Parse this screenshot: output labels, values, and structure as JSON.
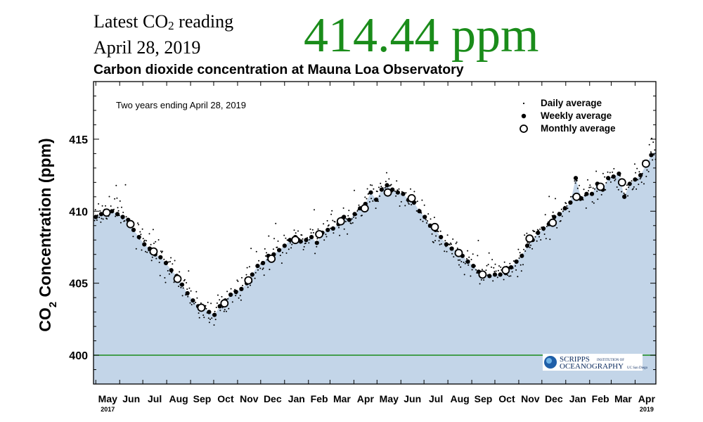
{
  "header": {
    "latest_prefix": "Latest CO",
    "latest_sub": "2",
    "latest_suffix": " reading",
    "date": "April 28, 2019",
    "latest_value": "414.44 ppm"
  },
  "colors": {
    "value_green": "#1a8c1a",
    "fill": "#c3d5e8",
    "baseline": "#1a8c1a",
    "points": "#000000"
  },
  "logo": {
    "line1": "SCRIPPS",
    "line1_small": "INSTITUTION OF",
    "line2": "OCEANOGRAPHY",
    "line2_small": "UC San Diego",
    "icon": "globe-icon"
  },
  "chart_data": {
    "type": "scatter",
    "title": "Carbon dioxide concentration at Mauna Loa Observatory",
    "note": "Two years ending April 28, 2019",
    "ylabel_prefix": "CO",
    "ylabel_sub": "2",
    "ylabel_suffix": " Concentration (ppm)",
    "ylim": [
      398,
      419
    ],
    "yticks": [
      400,
      405,
      410,
      415
    ],
    "xlim": [
      "2017-04-28",
      "2019-04-28"
    ],
    "reference_line": 400,
    "month_labels": [
      "May",
      "Jun",
      "Jul",
      "Aug",
      "Sep",
      "Oct",
      "Nov",
      "Dec",
      "Jan",
      "Feb",
      "Mar",
      "Apr",
      "May",
      "Jun",
      "Jul",
      "Aug",
      "Sep",
      "Oct",
      "Nov",
      "Dec",
      "Jan",
      "Feb",
      "Mar",
      "Apr"
    ],
    "year_labels": [
      {
        "text": "2017",
        "under": "May"
      },
      {
        "text": "2019",
        "under": "Apr"
      }
    ],
    "legend": [
      "Daily average",
      "Weekly average",
      "Monthly average"
    ],
    "legend_position": "top-right",
    "series": [
      {
        "name": "Monthly average",
        "x": [
          "2017-05-15",
          "2017-06-15",
          "2017-07-15",
          "2017-08-15",
          "2017-09-15",
          "2017-10-15",
          "2017-11-15",
          "2017-12-15",
          "2018-01-15",
          "2018-02-15",
          "2018-03-15",
          "2018-04-15",
          "2018-05-15",
          "2018-06-15",
          "2018-07-15",
          "2018-08-15",
          "2018-09-15",
          "2018-10-15",
          "2018-11-15",
          "2018-12-15",
          "2019-01-15",
          "2019-02-15",
          "2019-03-15",
          "2019-04-15"
        ],
        "y": [
          409.9,
          409.1,
          407.2,
          405.3,
          403.3,
          403.6,
          405.2,
          406.7,
          408.0,
          408.4,
          409.3,
          410.2,
          411.3,
          410.9,
          408.9,
          407.1,
          405.6,
          405.9,
          408.1,
          409.2,
          411.0,
          411.7,
          412.0,
          413.3
        ]
      },
      {
        "name": "Weekly average",
        "x": [
          "2017-05-01",
          "2017-05-08",
          "2017-05-22",
          "2017-05-29",
          "2017-06-05",
          "2017-06-12",
          "2017-06-19",
          "2017-06-26",
          "2017-07-03",
          "2017-07-10",
          "2017-07-17",
          "2017-07-24",
          "2017-07-31",
          "2017-08-07",
          "2017-08-14",
          "2017-08-21",
          "2017-08-28",
          "2017-09-04",
          "2017-09-11",
          "2017-09-18",
          "2017-09-25",
          "2017-10-02",
          "2017-10-09",
          "2017-10-16",
          "2017-10-23",
          "2017-10-30",
          "2017-11-06",
          "2017-11-13",
          "2017-11-20",
          "2017-11-27",
          "2017-12-04",
          "2017-12-11",
          "2017-12-18",
          "2017-12-25",
          "2018-01-01",
          "2018-01-08",
          "2018-01-15",
          "2018-01-22",
          "2018-01-29",
          "2018-02-05",
          "2018-02-12",
          "2018-02-19",
          "2018-02-26",
          "2018-03-05",
          "2018-03-12",
          "2018-03-19",
          "2018-03-26",
          "2018-04-02",
          "2018-04-09",
          "2018-04-16",
          "2018-04-23",
          "2018-04-30",
          "2018-05-07",
          "2018-05-14",
          "2018-05-21",
          "2018-05-28",
          "2018-06-04",
          "2018-06-11",
          "2018-06-18",
          "2018-06-25",
          "2018-07-02",
          "2018-07-09",
          "2018-07-16",
          "2018-07-23",
          "2018-07-30",
          "2018-08-06",
          "2018-08-13",
          "2018-08-20",
          "2018-08-27",
          "2018-09-03",
          "2018-09-10",
          "2018-09-17",
          "2018-09-24",
          "2018-10-01",
          "2018-10-08",
          "2018-10-15",
          "2018-10-22",
          "2018-10-29",
          "2018-11-05",
          "2018-11-12",
          "2018-11-19",
          "2018-11-26",
          "2018-12-03",
          "2018-12-10",
          "2018-12-17",
          "2018-12-24",
          "2018-12-31",
          "2019-01-07",
          "2019-01-14",
          "2019-01-21",
          "2019-01-28",
          "2019-02-04",
          "2019-02-11",
          "2019-02-18",
          "2019-02-25",
          "2019-03-04",
          "2019-03-11",
          "2019-03-18",
          "2019-03-25",
          "2019-04-01",
          "2019-04-08",
          "2019-04-15",
          "2019-04-22"
        ],
        "y": [
          409.6,
          409.8,
          410.0,
          409.8,
          409.6,
          409.4,
          408.7,
          408.2,
          407.7,
          407.4,
          407.0,
          406.8,
          406.4,
          405.9,
          405.5,
          404.9,
          404.3,
          403.8,
          403.4,
          403.3,
          403.0,
          402.8,
          403.4,
          403.8,
          404.2,
          404.4,
          404.6,
          405.0,
          405.6,
          406.2,
          406.4,
          406.9,
          407.0,
          407.3,
          407.6,
          408.0,
          408.2,
          407.9,
          408.0,
          408.2,
          407.8,
          408.5,
          408.7,
          408.8,
          409.1,
          409.6,
          409.4,
          409.8,
          410.2,
          410.5,
          411.3,
          410.8,
          411.5,
          411.8,
          411.5,
          411.3,
          411.2,
          410.8,
          410.6,
          410.0,
          409.6,
          409.0,
          408.7,
          408.2,
          407.7,
          407.4,
          407.2,
          406.9,
          406.5,
          406.2,
          405.8,
          405.6,
          405.5,
          405.6,
          405.6,
          405.7,
          406.1,
          406.5,
          406.9,
          407.6,
          408.0,
          408.5,
          408.8,
          409.1,
          409.6,
          409.8,
          410.2,
          410.6,
          412.3,
          410.9,
          411.2,
          411.2,
          411.9,
          411.5,
          412.3,
          412.4,
          412.6,
          411.0,
          411.9,
          412.2,
          412.5,
          413.2,
          413.9
        ]
      }
    ]
  }
}
